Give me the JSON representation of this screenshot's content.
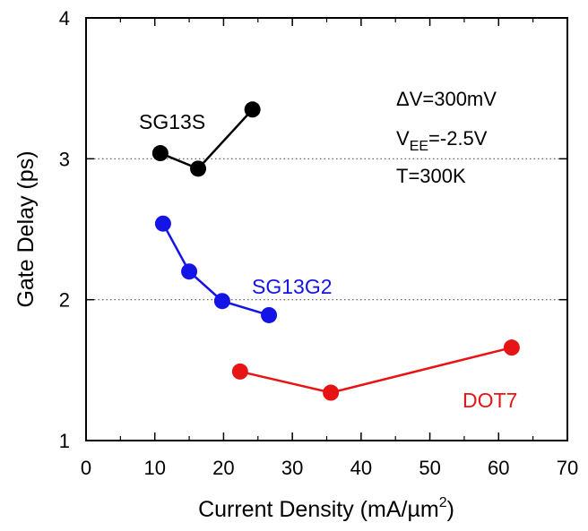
{
  "chart_data": {
    "type": "line",
    "xlabel": "Current Density (mA/µm",
    "xlabel_sup": "2",
    "xlabel_end": ")",
    "ylabel": "Gate Delay (ps)",
    "xlim": [
      0,
      70
    ],
    "ylim": [
      1,
      4
    ],
    "xticks": [
      0,
      10,
      20,
      30,
      40,
      50,
      60,
      70
    ],
    "yticks": [
      1,
      2,
      3,
      4
    ],
    "reference_lines_y": [
      2,
      3
    ],
    "grid": false,
    "series": [
      {
        "name": "SG13S",
        "color": "#000000",
        "x": [
          10.8,
          16.3,
          24.2
        ],
        "y": [
          3.04,
          2.93,
          3.35
        ]
      },
      {
        "name": "SG13G2",
        "color": "#1414e6",
        "x": [
          11.2,
          15.0,
          19.8,
          26.6
        ],
        "y": [
          2.54,
          2.2,
          1.99,
          1.89
        ]
      },
      {
        "name": "DOT7",
        "color": "#e61414",
        "x": [
          22.4,
          35.6,
          61.9
        ],
        "y": [
          1.49,
          1.34,
          1.66
        ]
      }
    ],
    "annotations": {
      "line1": "ΔV=300mV",
      "line2_main": "V",
      "line2_sub": "EE",
      "line2_end": "=-2.5V",
      "line3": "T=300K"
    }
  }
}
